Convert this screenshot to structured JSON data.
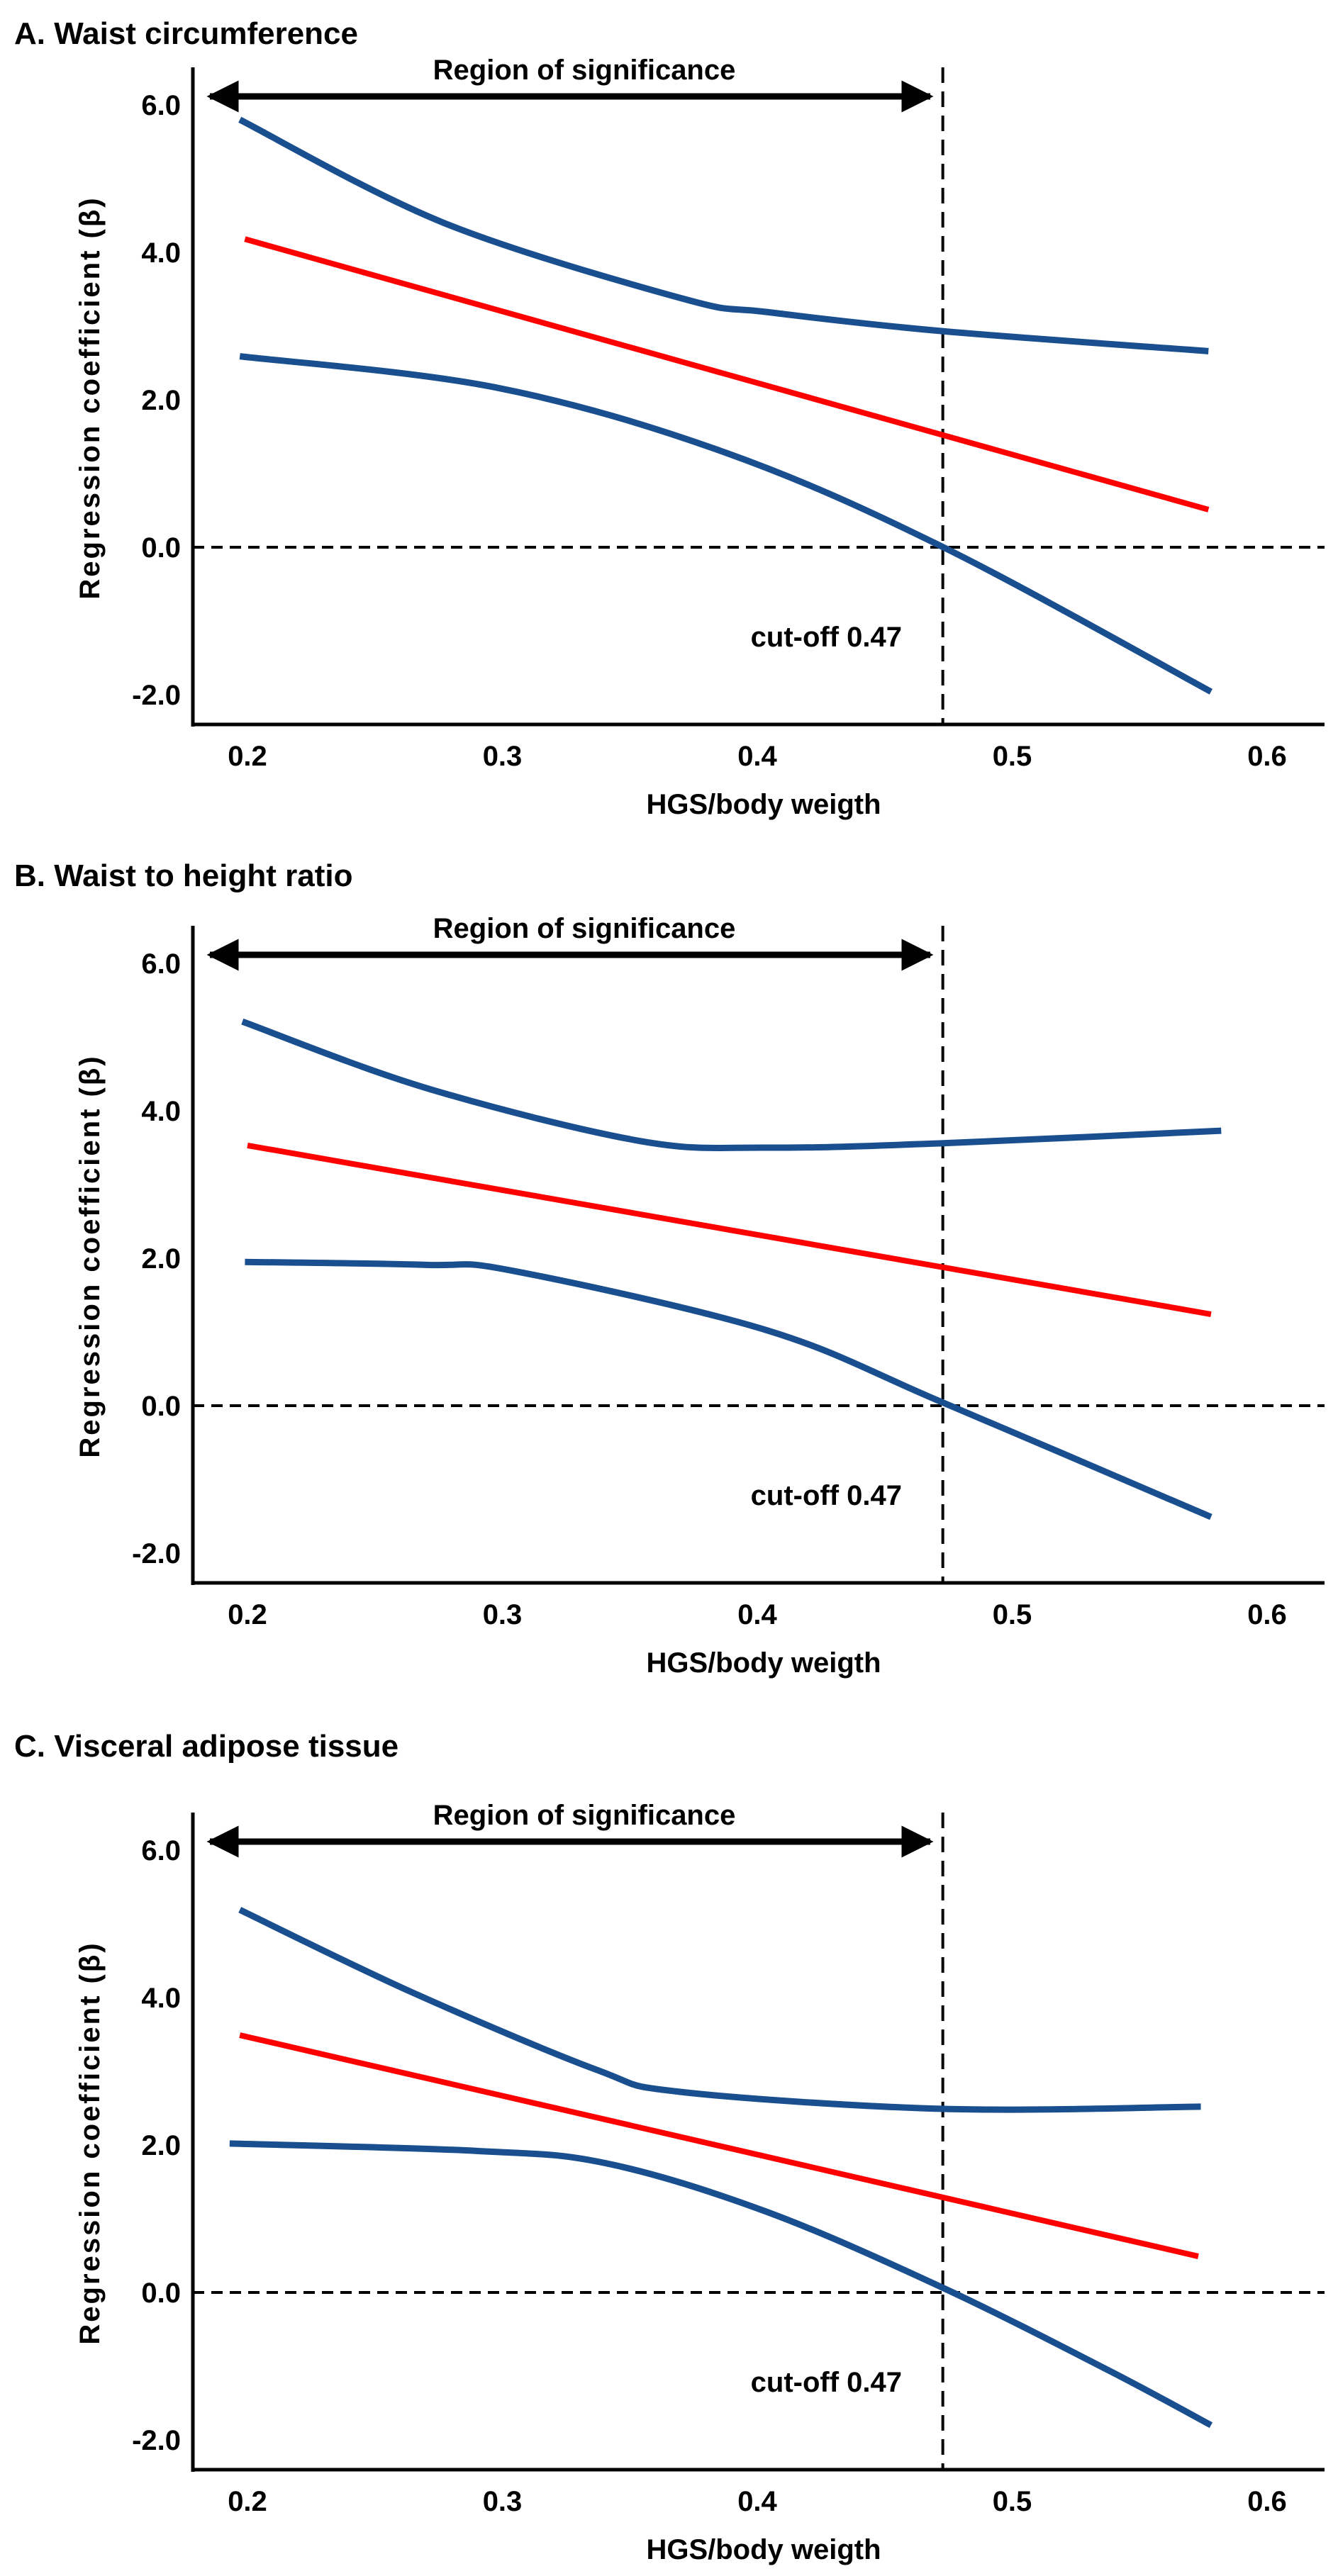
{
  "colors": {
    "estimate": "#ff0000",
    "bounds": "#1a4f8f",
    "axis": "#000000"
  },
  "chart_data": [
    {
      "type": "line",
      "title": "A. Waist circumference",
      "xlabel": "HGS/body weigth",
      "ylabel": "Regression coefficient (β)",
      "xlim": [
        0.18,
        0.62
      ],
      "ylim": [
        -2.4,
        6.5
      ],
      "xticks": [
        "0.2",
        "0.3",
        "0.4",
        "0.5",
        "0.6"
      ],
      "xtick_values": [
        0.2,
        0.3,
        0.4,
        0.5,
        0.6
      ],
      "yticks": [
        "6.0",
        "4.0",
        "2.0",
        "0.0",
        "-2.0"
      ],
      "ytick_values": [
        6,
        4,
        2,
        0,
        -2
      ],
      "annotation_region": "Region of significance",
      "annotation_cutoff": "cut-off 0.47",
      "cutoff": 0.47,
      "series": [
        {
          "name": "upper",
          "x": [
            0.197,
            0.277,
            0.371,
            0.404,
            0.473,
            0.577
          ],
          "y": [
            5.8,
            4.4,
            3.37,
            3.19,
            2.93,
            2.66
          ]
        },
        {
          "name": "estimate",
          "x": [
            0.199,
            0.577
          ],
          "y": [
            4.18,
            0.51
          ]
        },
        {
          "name": "lower",
          "x": [
            0.197,
            0.297,
            0.387,
            0.473,
            0.578
          ],
          "y": [
            2.59,
            2.17,
            1.29,
            0.0,
            -1.96
          ]
        }
      ]
    },
    {
      "type": "line",
      "title": "B. Waist to height ratio",
      "xlabel": "HGS/body weigth",
      "ylabel": "Regression coefficient (β)",
      "xlim": [
        0.18,
        0.62
      ],
      "ylim": [
        -2.4,
        6.5
      ],
      "xticks": [
        "0.2",
        "0.3",
        "0.4",
        "0.5",
        "0.6"
      ],
      "xtick_values": [
        0.2,
        0.3,
        0.4,
        0.5,
        0.6
      ],
      "yticks": [
        "6.0",
        "4.0",
        "2.0",
        "0.0",
        "-2.0"
      ],
      "ytick_values": [
        6,
        4,
        2,
        0,
        -2
      ],
      "annotation_region": "Region of significance",
      "annotation_cutoff": "cut-off 0.47",
      "cutoff": 0.47,
      "series": [
        {
          "name": "upper",
          "x": [
            0.198,
            0.27,
            0.354,
            0.404,
            0.473,
            0.582
          ],
          "y": [
            5.21,
            4.31,
            3.59,
            3.5,
            3.56,
            3.73
          ]
        },
        {
          "name": "estimate",
          "x": [
            0.2,
            0.578
          ],
          "y": [
            3.53,
            1.24
          ]
        },
        {
          "name": "lower",
          "x": [
            0.199,
            0.27,
            0.304,
            0.404,
            0.473,
            0.578
          ],
          "y": [
            1.95,
            1.91,
            1.83,
            1.02,
            0.04,
            -1.51
          ]
        }
      ]
    },
    {
      "type": "line",
      "title": "C. Visceral adipose tissue",
      "xlabel": "HGS/body weigth",
      "ylabel": "Regression coefficient (β)",
      "xlim": [
        0.18,
        0.62
      ],
      "ylim": [
        -2.4,
        6.5
      ],
      "xticks": [
        "0.2",
        "0.3",
        "0.4",
        "0.5",
        "0.6"
      ],
      "xtick_values": [
        0.2,
        0.3,
        0.4,
        0.5,
        0.6
      ],
      "yticks": [
        "6.0",
        "4.0",
        "2.0",
        "0.0",
        "-2.0"
      ],
      "ytick_values": [
        6,
        4,
        2,
        0,
        -2
      ],
      "annotation_region": "Region of significance",
      "annotation_cutoff": "cut-off 0.47",
      "cutoff": 0.47,
      "series": [
        {
          "name": "upper",
          "x": [
            0.197,
            0.264,
            0.337,
            0.37,
            0.473,
            0.574
          ],
          "y": [
            5.19,
            4.08,
            3.02,
            2.72,
            2.49,
            2.52
          ]
        },
        {
          "name": "estimate",
          "x": [
            0.197,
            0.573
          ],
          "y": [
            3.49,
            0.49
          ]
        },
        {
          "name": "lower",
          "x": [
            0.193,
            0.29,
            0.341,
            0.404,
            0.473,
            0.538,
            0.578
          ],
          "y": [
            2.02,
            1.92,
            1.75,
            1.09,
            0.06,
            -1.06,
            -1.8
          ]
        }
      ]
    }
  ]
}
